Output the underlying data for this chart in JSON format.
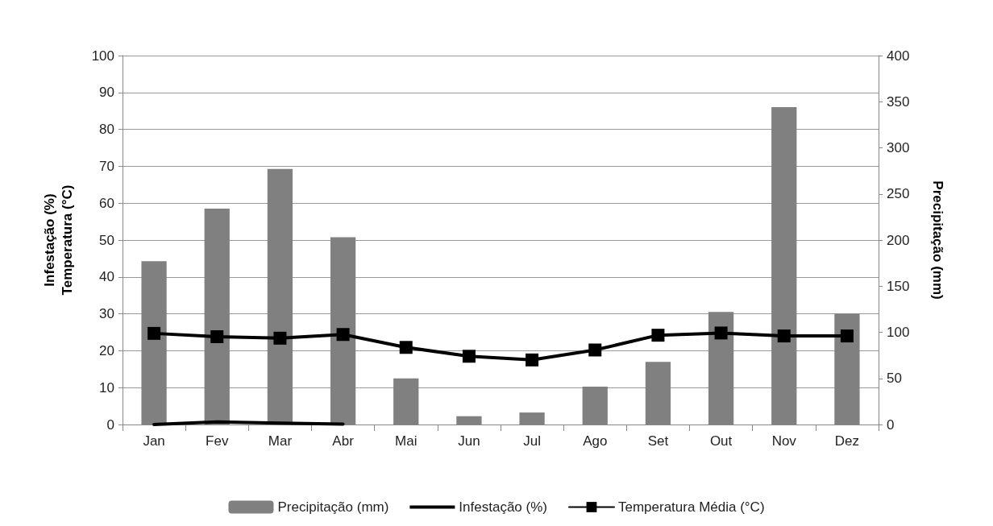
{
  "chart_data": {
    "type": "bar",
    "ylabel": "Infestação (%)\nTemperatura (°C)",
    "y2label": "Precipitação (mm)",
    "categories": [
      "Jan",
      "Fev",
      "Mar",
      "Abr",
      "Mai",
      "Jun",
      "Jul",
      "Ago",
      "Set",
      "Out",
      "Nov",
      "Dez"
    ],
    "series": [
      {
        "name": "Precipitação (mm)",
        "axis": "y2",
        "color": "#808080",
        "values": [
          177,
          234,
          277,
          203,
          50,
          9,
          13,
          41,
          68,
          122,
          344,
          120
        ]
      },
      {
        "name": "Infestação (%)",
        "type": "line",
        "color": "#000000",
        "marker": "none",
        "values": [
          0,
          0.7,
          0.4,
          0.1,
          null,
          null,
          null,
          null,
          null,
          null,
          null,
          null
        ]
      },
      {
        "name": "Temperatura Média (°C)",
        "type": "line",
        "color": "#000000",
        "marker": "square",
        "values": [
          24.7,
          23.8,
          23.4,
          24.4,
          20.9,
          18.5,
          17.5,
          20.2,
          24.2,
          24.8,
          24.0,
          24.0
        ]
      }
    ],
    "ylim": [
      0,
      100
    ],
    "yticks": [
      0,
      10,
      20,
      30,
      40,
      50,
      60,
      70,
      80,
      90,
      100
    ],
    "y2lim": [
      0,
      400
    ],
    "y2ticks": [
      0,
      50,
      100,
      150,
      200,
      250,
      300,
      350,
      400
    ],
    "grid": "y",
    "legend": "bottom"
  }
}
